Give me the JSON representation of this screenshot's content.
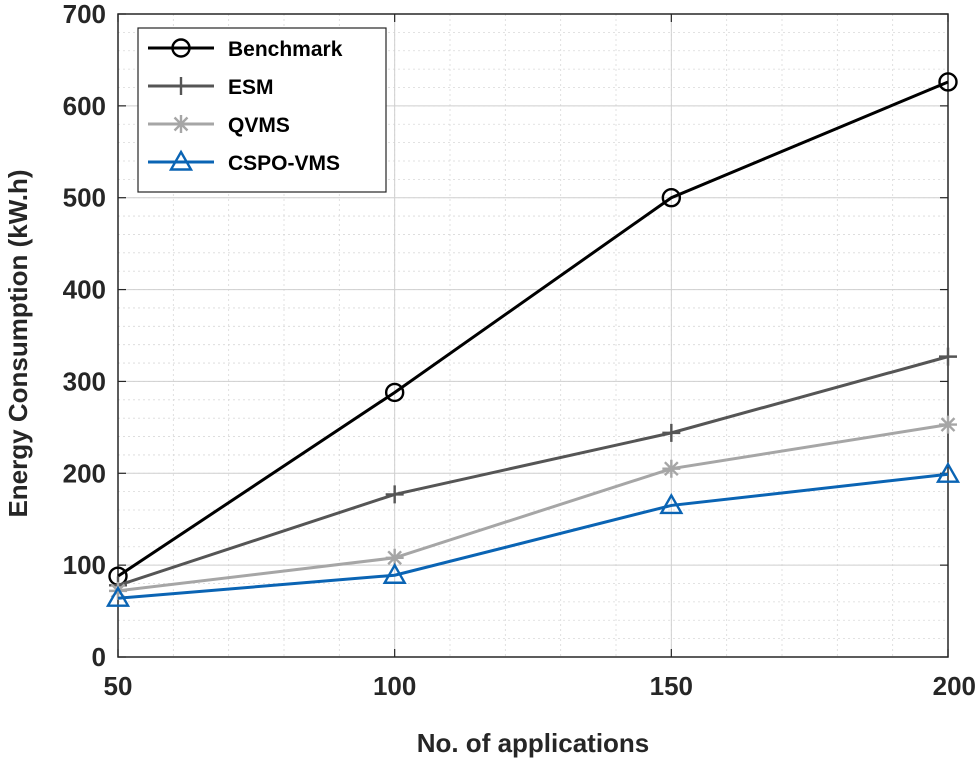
{
  "chart_data": {
    "type": "line",
    "xlabel": "No. of applications",
    "ylabel": "Energy Consumption (kW.h)",
    "x": [
      50,
      100,
      150,
      200
    ],
    "xlim": [
      50,
      200
    ],
    "ylim": [
      0,
      700
    ],
    "xticks": [
      50,
      100,
      150,
      200
    ],
    "yticks": [
      0,
      100,
      200,
      300,
      400,
      500,
      600,
      700
    ],
    "grid": true,
    "minor_grid": true,
    "legend_position": "top-left",
    "series": [
      {
        "name": "Benchmark",
        "marker": "circle",
        "color": "#000000",
        "values": [
          88,
          288,
          500,
          626
        ]
      },
      {
        "name": "ESM",
        "marker": "plus",
        "color": "#555555",
        "values": [
          78,
          177,
          244,
          327
        ]
      },
      {
        "name": "QVMS",
        "marker": "asterisk",
        "color": "#a6a6a6",
        "values": [
          72,
          108,
          205,
          253
        ]
      },
      {
        "name": "CSPO-VMS",
        "marker": "triangle",
        "color": "#0a64b4",
        "values": [
          64,
          89,
          165,
          199
        ]
      }
    ]
  }
}
